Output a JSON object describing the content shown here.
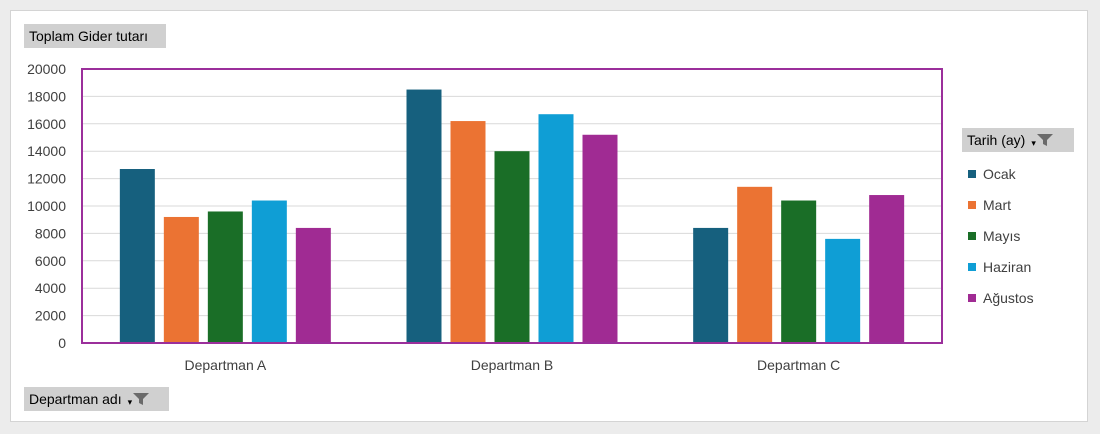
{
  "value_field_label": "Toplam Gider tutarı",
  "axis_field_label": "Departman adı",
  "legend_field_label": "Tarih (ay)",
  "icons": {
    "filter": "filter-funnel-icon",
    "dropdown": "dropdown-arrow-icon"
  },
  "colors": {
    "plot_border": "#9b2f9b",
    "gridline": "#d9d9d9",
    "axis_text": "#404040",
    "series": [
      "#16607e",
      "#eb7333",
      "#1a6e27",
      "#0f9ed5",
      "#a02b93"
    ]
  },
  "chart_data": {
    "type": "bar",
    "categories": [
      "Departman A",
      "Departman B",
      "Departman C"
    ],
    "ylim": [
      0,
      20000
    ],
    "yticks": [
      "0",
      "2000",
      "4000",
      "6000",
      "8000",
      "10000",
      "12000",
      "14000",
      "16000",
      "18000",
      "20000"
    ],
    "grid": true,
    "legend_position": "right",
    "series": [
      {
        "name": "Ocak",
        "values": [
          12700,
          18500,
          8400
        ]
      },
      {
        "name": "Mart",
        "values": [
          9200,
          16200,
          11400
        ]
      },
      {
        "name": "Mayıs",
        "values": [
          9600,
          14000,
          10400
        ]
      },
      {
        "name": "Haziran",
        "values": [
          10400,
          16700,
          7600
        ]
      },
      {
        "name": "Ağustos",
        "values": [
          8400,
          15200,
          10800
        ]
      }
    ]
  }
}
